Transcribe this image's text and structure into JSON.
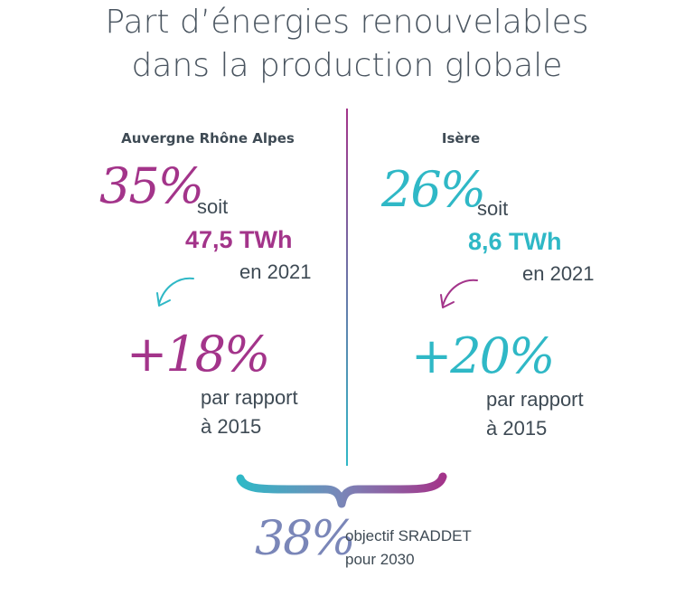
{
  "title": {
    "line1": "Part d’énergies renouvelables",
    "line2": "dans la production globale"
  },
  "left": {
    "region": "Auvergne Rhône Alpes",
    "percent": "35%",
    "soit": "soit",
    "energy": "47,5 TWh",
    "year": "en 2021",
    "growth": "+18%",
    "ref_line1": "par rapport",
    "ref_line2": "à 2015"
  },
  "right": {
    "region": "Isère",
    "percent": "26%",
    "soit": "soit",
    "energy": "8,6 TWh",
    "year": "en 2021",
    "growth": "+20%",
    "ref_line1": "par rapport",
    "ref_line2": "à 2015"
  },
  "objective": {
    "percent": "38%",
    "line1": "objectif SRADDET",
    "line2": "pour 2030"
  },
  "colors": {
    "magenta": "#a3348a",
    "cyan": "#2fb8c6",
    "slate": "#7a86b8",
    "text": "#3e4a54"
  },
  "icons": [
    "curved-arrow-icon",
    "curly-brace-icon"
  ]
}
